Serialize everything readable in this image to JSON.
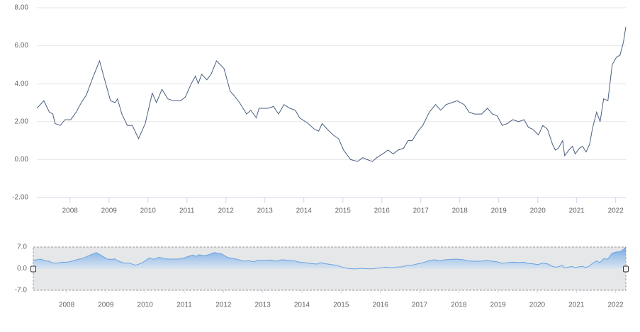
{
  "chart_data": {
    "type": "line",
    "x": [
      2007.15,
      2007.33,
      2007.47,
      2007.56,
      2007.62,
      2007.75,
      2007.87,
      2008.02,
      2008.16,
      2008.29,
      2008.42,
      2008.6,
      2008.76,
      2008.89,
      2009.04,
      2009.16,
      2009.22,
      2009.33,
      2009.47,
      2009.6,
      2009.76,
      2009.93,
      2010.11,
      2010.22,
      2010.36,
      2010.51,
      2010.65,
      2010.84,
      2010.96,
      2011.11,
      2011.22,
      2011.29,
      2011.38,
      2011.51,
      2011.62,
      2011.76,
      2011.95,
      2012.11,
      2012.2,
      2012.35,
      2012.53,
      2012.64,
      2012.78,
      2012.85,
      2013.07,
      2013.22,
      2013.35,
      2013.49,
      2013.64,
      2013.78,
      2013.89,
      2014.11,
      2014.27,
      2014.38,
      2014.47,
      2014.6,
      2014.75,
      2014.89,
      2015.02,
      2015.2,
      2015.38,
      2015.51,
      2015.62,
      2015.76,
      2015.87,
      2016.02,
      2016.16,
      2016.29,
      2016.42,
      2016.56,
      2016.67,
      2016.78,
      2016.93,
      2017.05,
      2017.22,
      2017.38,
      2017.51,
      2017.65,
      2017.8,
      2017.93,
      2018.11,
      2018.24,
      2018.38,
      2018.56,
      2018.71,
      2018.84,
      2018.96,
      2019.09,
      2019.22,
      2019.36,
      2019.51,
      2019.65,
      2019.76,
      2019.87,
      2020.02,
      2020.13,
      2020.25,
      2020.38,
      2020.45,
      2020.53,
      2020.64,
      2020.69,
      2020.8,
      2020.89,
      2020.96,
      2021.07,
      2021.15,
      2021.24,
      2021.33,
      2021.4,
      2021.51,
      2021.6,
      2021.69,
      2021.8,
      2021.91,
      2022.02,
      2022.11,
      2022.2,
      2022.26
    ],
    "series": [
      {
        "color": "#4a5f80",
        "values": [
          2.7,
          3.1,
          2.5,
          2.4,
          1.9,
          1.8,
          2.1,
          2.1,
          2.5,
          3.0,
          3.4,
          4.4,
          5.2,
          4.2,
          3.1,
          3.0,
          3.2,
          2.4,
          1.8,
          1.8,
          1.1,
          1.9,
          3.5,
          3.0,
          3.7,
          3.2,
          3.1,
          3.1,
          3.3,
          4.0,
          4.4,
          4.0,
          4.5,
          4.2,
          4.5,
          5.2,
          4.8,
          3.6,
          3.4,
          3.0,
          2.4,
          2.6,
          2.2,
          2.7,
          2.7,
          2.8,
          2.4,
          2.9,
          2.7,
          2.6,
          2.2,
          1.9,
          1.6,
          1.5,
          1.9,
          1.6,
          1.3,
          1.1,
          0.5,
          0.0,
          -0.1,
          0.1,
          0.0,
          -0.1,
          0.1,
          0.3,
          0.5,
          0.3,
          0.5,
          0.6,
          1.0,
          1.0,
          1.5,
          1.8,
          2.5,
          2.9,
          2.6,
          2.9,
          3.0,
          3.1,
          2.9,
          2.5,
          2.4,
          2.4,
          2.7,
          2.4,
          2.3,
          1.8,
          1.9,
          2.1,
          2.0,
          2.1,
          1.7,
          1.6,
          1.3,
          1.8,
          1.6,
          0.8,
          0.5,
          0.6,
          1.0,
          0.2,
          0.5,
          0.7,
          0.3,
          0.6,
          0.7,
          0.4,
          0.8,
          1.6,
          2.5,
          2.0,
          3.2,
          3.1,
          5.0,
          5.4,
          5.5,
          6.2,
          7.0
        ]
      }
    ],
    "xlim": [
      2007.15,
      2022.26
    ],
    "xticks": [
      2008,
      2009,
      2010,
      2011,
      2012,
      2013,
      2014,
      2015,
      2016,
      2017,
      2018,
      2019,
      2020,
      2021,
      2022
    ],
    "ylim": [
      -2,
      8
    ],
    "yticks": [
      {
        "value": -2,
        "label": "-2.00"
      },
      {
        "value": 0,
        "label": "0.00"
      },
      {
        "value": 2,
        "label": "2.00"
      },
      {
        "value": 4,
        "label": "4.00"
      },
      {
        "value": 6,
        "label": "6.00"
      },
      {
        "value": 8,
        "label": "8.00"
      }
    ],
    "grid": true,
    "navigator": {
      "ylim": [
        -7,
        7
      ],
      "yticks": [
        {
          "value": -7,
          "label": "-7.0"
        },
        {
          "value": 0,
          "label": "0.0"
        },
        {
          "value": 7,
          "label": "7.0"
        }
      ],
      "color": "#6aa3e0"
    }
  }
}
